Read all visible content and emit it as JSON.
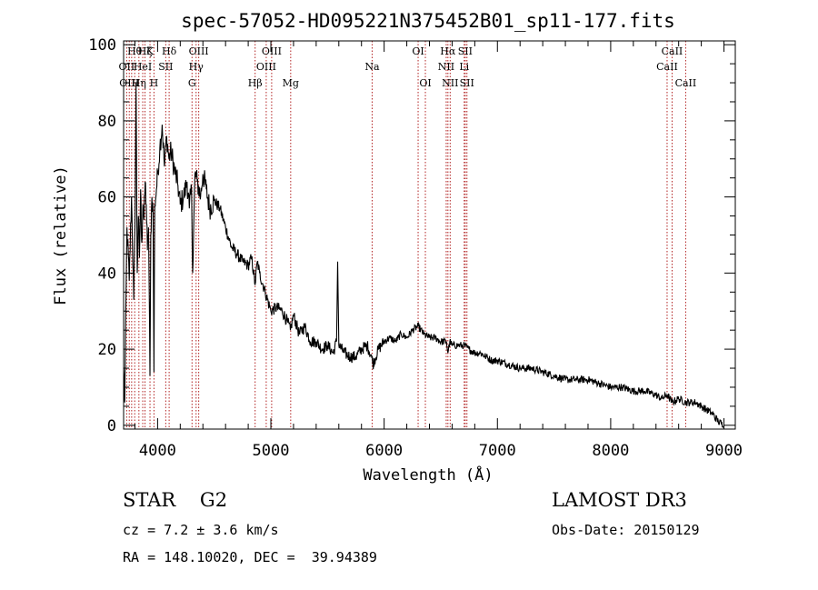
{
  "chart_data": {
    "type": "line",
    "title": "spec-57052-HD095221N375452B01_sp11-177.fits",
    "xlabel": "Wavelength (Å)",
    "ylabel": "Flux (relative)",
    "xlim": [
      3700,
      9100
    ],
    "ylim": [
      -1,
      101
    ],
    "x_ticks": [
      "4000",
      "5000",
      "6000",
      "7000",
      "8000",
      "9000"
    ],
    "y_ticks": [
      "0",
      "20",
      "40",
      "60",
      "80",
      "100"
    ],
    "grid": false,
    "series": [
      {
        "x": [
          3700,
          3710,
          3730,
          3750,
          3770,
          3790,
          3800,
          3810,
          3820,
          3830,
          3840,
          3850,
          3860,
          3870,
          3880,
          3890,
          3900,
          3910,
          3920,
          3933,
          3940,
          3950,
          3960,
          3968,
          3975,
          3990,
          4000,
          4020,
          4040,
          4060,
          4080,
          4100,
          4120,
          4150,
          4180,
          4200,
          4230,
          4260,
          4280,
          4300,
          4310,
          4330,
          4350,
          4380,
          4400,
          4430,
          4460,
          4500,
          4550,
          4600,
          4650,
          4700,
          4750,
          4800,
          4830,
          4861,
          4880,
          4900,
          4950,
          5000,
          5050,
          5100,
          5150,
          5172,
          5200,
          5250,
          5300,
          5350,
          5400,
          5450,
          5500,
          5550,
          5580,
          5590,
          5600,
          5650,
          5700,
          5750,
          5800,
          5850,
          5890,
          5900,
          5950,
          6000,
          6050,
          6100,
          6150,
          6200,
          6250,
          6300,
          6350,
          6400,
          6450,
          6500,
          6550,
          6563,
          6580,
          6600,
          6650,
          6700,
          6750,
          6800,
          6850,
          6900,
          6950,
          7000,
          7100,
          7200,
          7300,
          7400,
          7500,
          7600,
          7700,
          7800,
          7900,
          8000,
          8100,
          8200,
          8300,
          8400,
          8450,
          8498,
          8542,
          8600,
          8662,
          8700,
          8750,
          8800,
          8850,
          8900,
          8950,
          9000
        ],
        "y": [
          15,
          6,
          52,
          38,
          60,
          33,
          52,
          90,
          40,
          55,
          44,
          62,
          48,
          58,
          54,
          64,
          58,
          46,
          52,
          13,
          50,
          60,
          56,
          14,
          58,
          62,
          66,
          73,
          79,
          68,
          76,
          70,
          72,
          67,
          63,
          58,
          60,
          64,
          57,
          62,
          40,
          66,
          64,
          60,
          66,
          62,
          57,
          59,
          57,
          52,
          47,
          45,
          43,
          42,
          44,
          37,
          43,
          40,
          35,
          30,
          31,
          30,
          27,
          25,
          29,
          24,
          26,
          22,
          22,
          20,
          21,
          19,
          22,
          43,
          21,
          19,
          18,
          18,
          20,
          21,
          18,
          16,
          20,
          22,
          23,
          22,
          24,
          23,
          25,
          26,
          24,
          23,
          23,
          22,
          22,
          19,
          22,
          21,
          21,
          21,
          20,
          19,
          19,
          18,
          17,
          17,
          16,
          15,
          15,
          14,
          13,
          12,
          12,
          12,
          11,
          10,
          10,
          9,
          9,
          8,
          7,
          8,
          6,
          7,
          6,
          6,
          6,
          5,
          4,
          3,
          1,
          0
        ]
      }
    ],
    "lines": [
      {
        "wl": 3727,
        "row": 1,
        "label": "OII"
      },
      {
        "wl": 3750,
        "row": 2,
        "label": "OIII"
      },
      {
        "wl": 3771,
        "row": 2,
        "label": ""
      },
      {
        "wl": 3798,
        "row": 0,
        "label": "Hθ"
      },
      {
        "wl": 3835,
        "row": 2,
        "label": "Hη"
      },
      {
        "wl": 3869,
        "row": 1,
        "label": "HeI"
      },
      {
        "wl": 3889,
        "row": 0,
        "label": "Hζ"
      },
      {
        "wl": 3933,
        "row": 0,
        "label": "K"
      },
      {
        "wl": 3968,
        "row": 2,
        "label": "H"
      },
      {
        "wl": 4072,
        "row": 1,
        "label": "SII"
      },
      {
        "wl": 4102,
        "row": 0,
        "label": "Hδ"
      },
      {
        "wl": 4304,
        "row": 2,
        "label": "G"
      },
      {
        "wl": 4340,
        "row": 1,
        "label": "Hγ"
      },
      {
        "wl": 4363,
        "row": 0,
        "label": "OIII"
      },
      {
        "wl": 4861,
        "row": 2,
        "label": "Hβ"
      },
      {
        "wl": 4959,
        "row": 1,
        "label": "OIII"
      },
      {
        "wl": 5007,
        "row": 0,
        "label": "OIII"
      },
      {
        "wl": 5175,
        "row": 2,
        "label": "Mg"
      },
      {
        "wl": 5894,
        "row": 1,
        "label": "Na"
      },
      {
        "wl": 6300,
        "row": 0,
        "label": "OI"
      },
      {
        "wl": 6364,
        "row": 2,
        "label": "OI"
      },
      {
        "wl": 6548,
        "row": 1,
        "label": "NII"
      },
      {
        "wl": 6563,
        "row": 0,
        "label": "Hα"
      },
      {
        "wl": 6583,
        "row": 2,
        "label": "NII"
      },
      {
        "wl": 6707,
        "row": 1,
        "label": "Li"
      },
      {
        "wl": 6716,
        "row": 0,
        "label": "SII"
      },
      {
        "wl": 6731,
        "row": 2,
        "label": "SII"
      },
      {
        "wl": 8498,
        "row": 1,
        "label": "CaII"
      },
      {
        "wl": 8542,
        "row": 0,
        "label": "CaII"
      },
      {
        "wl": 8662,
        "row": 2,
        "label": "CaII"
      }
    ]
  },
  "info": {
    "class_line": "STAR    G2",
    "cz_line": "cz = 7.2 ± 3.6 km/s",
    "radec_line": "RA = 148.10020, DEC =  39.94389",
    "survey": "LAMOST DR3",
    "obs_date": "Obs-Date: 20150129"
  }
}
